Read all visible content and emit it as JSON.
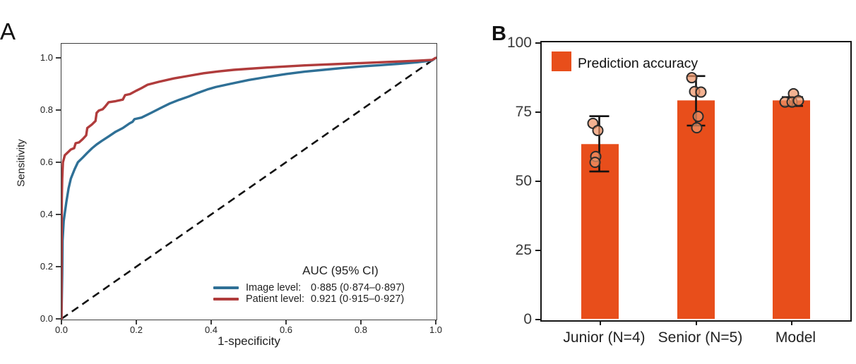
{
  "panelA": {
    "label": "A",
    "ylabel": "Sensitivity",
    "xlabel": "1-specificity",
    "x_ticks": [
      "0.0",
      "0.2",
      "0.4",
      "0.6",
      "0.8",
      "1.0"
    ],
    "y_ticks": [
      "0.0",
      "0.2",
      "0.4",
      "0.6",
      "0.8",
      "1.0"
    ],
    "legend": {
      "title": "AUC (95% CI)",
      "entries": [
        {
          "name": "Image level:",
          "value": "0·885 (0·874–0·897)",
          "color": "#2F7096"
        },
        {
          "name": "Patient level:",
          "value": "0.921 (0·915–0·927)",
          "color": "#B03C3C"
        }
      ]
    }
  },
  "panelB": {
    "label": "B",
    "legend_label": "Prediction accuracy",
    "y_ticks": [
      "0",
      "25",
      "50",
      "75",
      "100"
    ]
  },
  "chart_data": [
    {
      "type": "line",
      "title": "ROC curves",
      "xlabel": "1-specificity",
      "ylabel": "Sensitivity",
      "xlim": [
        0,
        1
      ],
      "ylim": [
        0,
        1.05
      ],
      "grid": false,
      "legend_position": "lower right",
      "diagonal_reference": {
        "style": "dashed",
        "color": "#111111",
        "from": [
          0,
          0
        ],
        "to": [
          1,
          1
        ]
      },
      "series": [
        {
          "name": "Image level",
          "auc": "0.885",
          "ci": "0.874-0.897",
          "color": "#2F7096",
          "points": [
            [
              0,
              0
            ],
            [
              0.002,
              0.17
            ],
            [
              0.003,
              0.3
            ],
            [
              0.006,
              0.375
            ],
            [
              0.013,
              0.447
            ],
            [
              0.019,
              0.5
            ],
            [
              0.025,
              0.537
            ],
            [
              0.035,
              0.573
            ],
            [
              0.044,
              0.6
            ],
            [
              0.057,
              0.618
            ],
            [
              0.069,
              0.636
            ],
            [
              0.082,
              0.654
            ],
            [
              0.094,
              0.668
            ],
            [
              0.107,
              0.681
            ],
            [
              0.126,
              0.699
            ],
            [
              0.145,
              0.717
            ],
            [
              0.164,
              0.731
            ],
            [
              0.182,
              0.749
            ],
            [
              0.19,
              0.755
            ],
            [
              0.195,
              0.765
            ],
            [
              0.214,
              0.771
            ],
            [
              0.239,
              0.789
            ],
            [
              0.264,
              0.807
            ],
            [
              0.289,
              0.825
            ],
            [
              0.314,
              0.839
            ],
            [
              0.34,
              0.852
            ],
            [
              0.365,
              0.866
            ],
            [
              0.39,
              0.879
            ],
            [
              0.412,
              0.888
            ],
            [
              0.45,
              0.9
            ],
            [
              0.5,
              0.915
            ],
            [
              0.55,
              0.927
            ],
            [
              0.6,
              0.938
            ],
            [
              0.65,
              0.947
            ],
            [
              0.7,
              0.954
            ],
            [
              0.75,
              0.961
            ],
            [
              0.8,
              0.967
            ],
            [
              0.85,
              0.972
            ],
            [
              0.9,
              0.977
            ],
            [
              0.95,
              0.983
            ],
            [
              0.99,
              0.99
            ],
            [
              1,
              1
            ]
          ]
        },
        {
          "name": "Patient level",
          "auc": "0.921",
          "ci": "0.915-0.927",
          "color": "#B03C3C",
          "points": [
            [
              0,
              0
            ],
            [
              0.001,
              0.46
            ],
            [
              0.002,
              0.538
            ],
            [
              0.004,
              0.6
            ],
            [
              0.009,
              0.627
            ],
            [
              0.02,
              0.642
            ],
            [
              0.025,
              0.649
            ],
            [
              0.034,
              0.654
            ],
            [
              0.038,
              0.673
            ],
            [
              0.047,
              0.676
            ],
            [
              0.057,
              0.689
            ],
            [
              0.066,
              0.703
            ],
            [
              0.069,
              0.731
            ],
            [
              0.081,
              0.744
            ],
            [
              0.091,
              0.758
            ],
            [
              0.094,
              0.789
            ],
            [
              0.1,
              0.798
            ],
            [
              0.11,
              0.803
            ],
            [
              0.116,
              0.812
            ],
            [
              0.126,
              0.83
            ],
            [
              0.145,
              0.834
            ],
            [
              0.164,
              0.84
            ],
            [
              0.17,
              0.857
            ],
            [
              0.183,
              0.861
            ],
            [
              0.201,
              0.875
            ],
            [
              0.214,
              0.884
            ],
            [
              0.23,
              0.897
            ],
            [
              0.26,
              0.908
            ],
            [
              0.3,
              0.921
            ],
            [
              0.34,
              0.931
            ],
            [
              0.38,
              0.941
            ],
            [
              0.42,
              0.948
            ],
            [
              0.46,
              0.954
            ],
            [
              0.5,
              0.958
            ],
            [
              0.55,
              0.963
            ],
            [
              0.6,
              0.967
            ],
            [
              0.65,
              0.971
            ],
            [
              0.7,
              0.974
            ],
            [
              0.75,
              0.977
            ],
            [
              0.8,
              0.98
            ],
            [
              0.85,
              0.983
            ],
            [
              0.9,
              0.986
            ],
            [
              0.95,
              0.989
            ],
            [
              0.99,
              0.992
            ],
            [
              1,
              1
            ]
          ]
        }
      ]
    },
    {
      "type": "bar",
      "title": "Prediction accuracy",
      "categories": [
        "Junior (N=4)",
        "Senior (N=5)",
        "Model"
      ],
      "values": [
        63.2,
        79,
        79
      ],
      "errors_low": [
        53.3,
        69.9,
        77.0
      ],
      "errors_high": [
        73.3,
        87.8,
        80.2
      ],
      "ylim": [
        0,
        100
      ],
      "grid": false,
      "bar_color": "#E84E1B",
      "point_fill": "#EE9468",
      "point_stroke": "#2b2b2b",
      "scatter_points": [
        [
          {
            "v": 70.7,
            "dx": -10
          },
          {
            "v": 68.1,
            "dx": -3
          },
          {
            "v": 58.7,
            "dx": -6
          },
          {
            "v": 56.6,
            "dx": -7
          }
        ],
        [
          {
            "v": 87.2,
            "dx": -6
          },
          {
            "v": 82.2,
            "dx": -2
          },
          {
            "v": 82.0,
            "dx": 7
          },
          {
            "v": 73.2,
            "dx": 3
          },
          {
            "v": 69.1,
            "dx": 1
          }
        ],
        [
          {
            "v": 81.4,
            "dx": 3
          },
          {
            "v": 78.4,
            "dx": -9
          },
          {
            "v": 78.4,
            "dx": 1
          },
          {
            "v": 78.9,
            "dx": 10
          }
        ]
      ]
    }
  ]
}
